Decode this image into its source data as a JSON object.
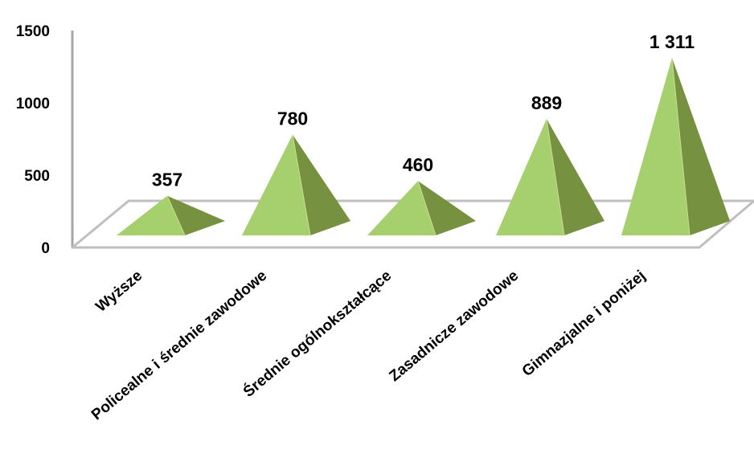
{
  "chart_data": {
    "type": "bar",
    "bar_shape": "pyramid",
    "categories": [
      "Wyższe",
      "Policealne i średnie zawodowe",
      "Średnie ogólnokształcące",
      "Zasadnicze zawodowe",
      "Gimnazjalne i poniżej"
    ],
    "values": [
      357,
      780,
      460,
      889,
      1311
    ],
    "value_labels": [
      "357",
      "780",
      "460",
      "889",
      "1 311"
    ],
    "title": "",
    "xlabel": "",
    "ylabel": "",
    "ylim": [
      0,
      1500
    ],
    "yticks": [
      0,
      500,
      1000,
      1500
    ],
    "ytick_labels": [
      "0",
      "500",
      "1000",
      "1500"
    ],
    "grid": false,
    "legend": "none",
    "colors": {
      "face_light": "#a6cf6d",
      "face_dark": "#76913f",
      "edge_light": "#c4e28f",
      "floor_stroke": "#bfbfbf",
      "axis": "#a6a6a6"
    }
  }
}
